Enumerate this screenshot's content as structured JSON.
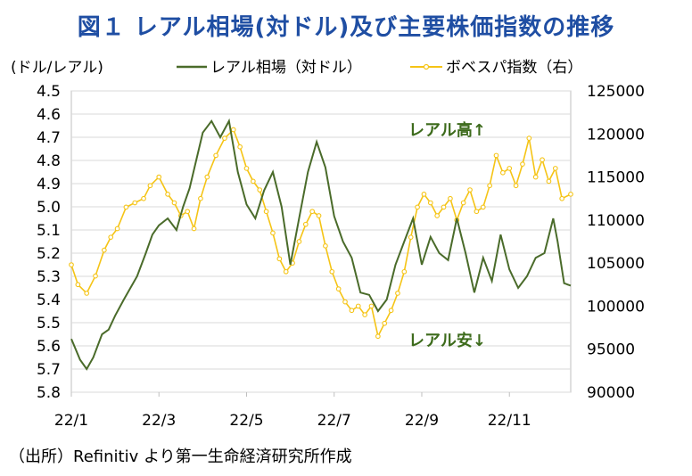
{
  "title": "図１ レアル相場(対ドル)及び主要株価指数の推移",
  "source_note": "（出所）Refinitiv より第一生命経済研究所作成",
  "chart_data": {
    "type": "line",
    "title": "図１ レアル相場(対ドル)及び主要株価指数の推移",
    "left_axis_unit": "(ドル/レアル)",
    "left_axis": {
      "min": 4.5,
      "max": 5.8,
      "inverted": true,
      "ticks": [
        "4.5",
        "4.6",
        "4.7",
        "4.8",
        "4.9",
        "5.0",
        "5.1",
        "5.2",
        "5.3",
        "5.4",
        "5.5",
        "5.6",
        "5.7",
        "5.8"
      ]
    },
    "right_axis": {
      "min": 90000,
      "max": 125000,
      "ticks": [
        "125000",
        "120000",
        "115000",
        "110000",
        "105000",
        "100000",
        "95000",
        "90000"
      ]
    },
    "x_ticks": [
      "22/1",
      "22/3",
      "22/5",
      "22/7",
      "22/9",
      "22/11"
    ],
    "grid": true,
    "annotations": {
      "up": "レアル高",
      "down": "レアル安",
      "up_arrow": "↑",
      "down_arrow": "↓"
    },
    "series": [
      {
        "name": "レアル相場（対ドル）",
        "axis": "left",
        "color": "#4a6b2a",
        "x": [
          0,
          0.2,
          0.35,
          0.5,
          0.7,
          0.85,
          1.0,
          1.2,
          1.5,
          1.7,
          1.85,
          2.0,
          2.2,
          2.4,
          2.55,
          2.7,
          2.85,
          3.0,
          3.2,
          3.4,
          3.6,
          3.8,
          4.0,
          4.2,
          4.4,
          4.6,
          4.8,
          5.0,
          5.2,
          5.4,
          5.6,
          5.8,
          6.0,
          6.2,
          6.4,
          6.6,
          6.8,
          7.0,
          7.2,
          7.4,
          7.6,
          7.8,
          8.0,
          8.2,
          8.4,
          8.6,
          8.8,
          9.0,
          9.2,
          9.4,
          9.6,
          9.8,
          10.0,
          10.2,
          10.4,
          10.6,
          10.8,
          11.0,
          11.1,
          11.25,
          11.4
        ],
        "values": [
          5.57,
          5.66,
          5.7,
          5.65,
          5.55,
          5.53,
          5.47,
          5.4,
          5.3,
          5.2,
          5.12,
          5.08,
          5.05,
          5.1,
          5.0,
          4.92,
          4.8,
          4.68,
          4.63,
          4.7,
          4.63,
          4.85,
          4.99,
          5.05,
          4.93,
          4.85,
          5.0,
          5.25,
          5.05,
          4.85,
          4.72,
          4.83,
          5.04,
          5.15,
          5.22,
          5.37,
          5.38,
          5.45,
          5.4,
          5.25,
          5.15,
          5.05,
          5.25,
          5.13,
          5.2,
          5.23,
          5.05,
          5.2,
          5.37,
          5.22,
          5.32,
          5.12,
          5.27,
          5.35,
          5.3,
          5.22,
          5.2,
          5.05,
          5.15,
          5.33,
          5.34
        ]
      },
      {
        "name": "ボベスパ指数（右）",
        "axis": "right",
        "color": "#f5c416",
        "x": [
          0,
          0.15,
          0.35,
          0.55,
          0.75,
          0.9,
          1.05,
          1.25,
          1.45,
          1.65,
          1.8,
          2.0,
          2.2,
          2.35,
          2.5,
          2.65,
          2.8,
          2.95,
          3.1,
          3.3,
          3.5,
          3.7,
          3.85,
          4.0,
          4.15,
          4.3,
          4.45,
          4.6,
          4.75,
          4.9,
          5.05,
          5.2,
          5.35,
          5.5,
          5.65,
          5.8,
          5.95,
          6.1,
          6.25,
          6.4,
          6.55,
          6.7,
          6.85,
          7.0,
          7.15,
          7.3,
          7.45,
          7.6,
          7.75,
          7.9,
          8.05,
          8.2,
          8.35,
          8.5,
          8.65,
          8.8,
          8.95,
          9.1,
          9.25,
          9.4,
          9.55,
          9.7,
          9.85,
          10.0,
          10.15,
          10.3,
          10.45,
          10.6,
          10.75,
          10.9,
          11.05,
          11.2,
          11.4
        ],
        "values": [
          104800,
          102500,
          101500,
          103500,
          106500,
          108000,
          109000,
          111500,
          112000,
          112500,
          114000,
          115000,
          113000,
          112000,
          110500,
          111000,
          109000,
          112500,
          115000,
          117500,
          119500,
          120500,
          118500,
          116000,
          114500,
          113500,
          111000,
          108500,
          105500,
          104000,
          105000,
          107500,
          109500,
          111000,
          110500,
          107000,
          104000,
          102000,
          100500,
          99500,
          100000,
          99000,
          100000,
          96500,
          98000,
          99500,
          101500,
          104000,
          108000,
          111500,
          113000,
          112000,
          110500,
          111500,
          112500,
          110000,
          112000,
          113500,
          111000,
          111500,
          114000,
          117500,
          115500,
          116000,
          114000,
          116500,
          119500,
          115000,
          117000,
          114500,
          116000,
          112500,
          113000
        ]
      }
    ]
  }
}
